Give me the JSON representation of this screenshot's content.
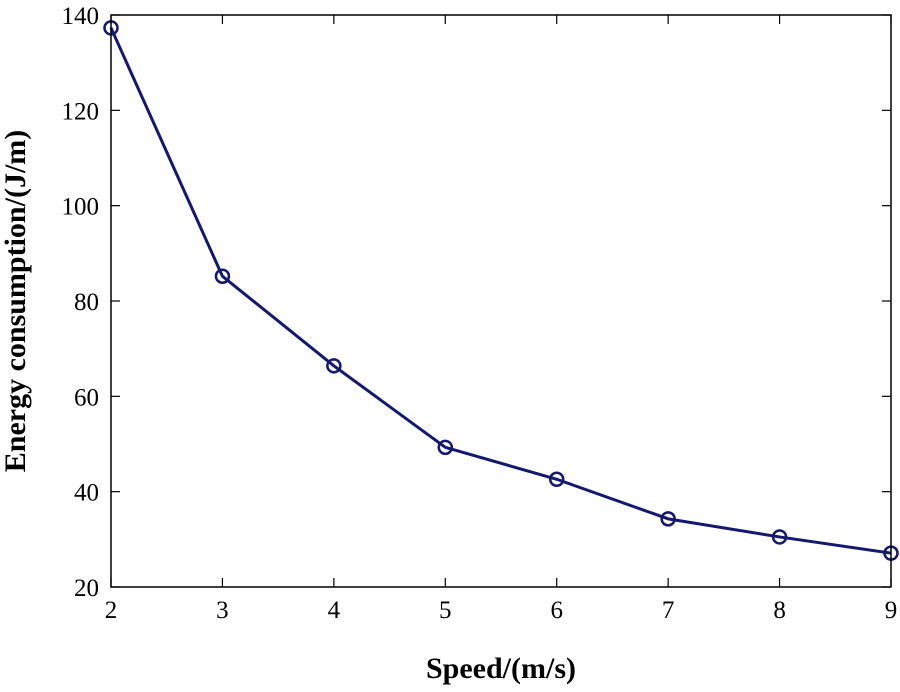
{
  "chart_data": {
    "type": "line",
    "title": "",
    "xlabel": "Speed/(m/s)",
    "ylabel": "Energy consumption/(J/m)",
    "xlim": [
      2,
      9
    ],
    "ylim": [
      20,
      140
    ],
    "xticks": [
      2,
      3,
      4,
      5,
      6,
      7,
      8,
      9
    ],
    "yticks": [
      20,
      40,
      60,
      80,
      100,
      120,
      140
    ],
    "grid": false,
    "legend": "none",
    "series": [
      {
        "name": "Energy consumption",
        "marker": "circle",
        "color": "#14186e",
        "x": [
          2,
          3,
          4,
          5,
          6,
          7,
          8,
          9
        ],
        "y": [
          137.3,
          85.2,
          66.4,
          49.3,
          42.6,
          34.3,
          30.5,
          27.1
        ]
      }
    ]
  }
}
